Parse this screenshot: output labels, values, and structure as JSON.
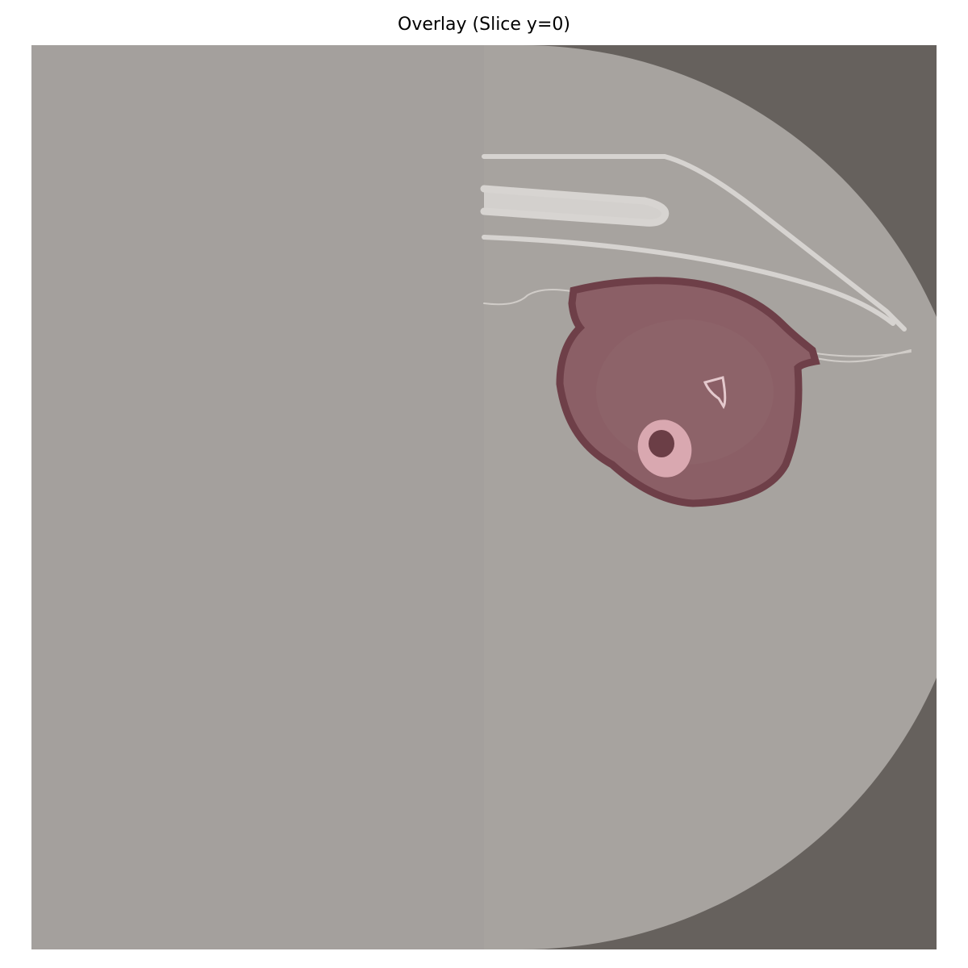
{
  "figure": {
    "title": "Overlay (Slice y=0)"
  },
  "colors": {
    "background": "#ffffff",
    "outside_scan": "#66615d",
    "scan_field": "#a7a39f",
    "left_fill": "#a4a09d",
    "tube_light": "#dcd9d6",
    "tube_stroke": "#cfcbc7",
    "mask_fill": "#8b5f66",
    "mask_border": "#6e3f48",
    "bone_ring": "#d9a8b0",
    "bone_core": "#6b3e46",
    "small_bone": "#e4c9cd"
  }
}
